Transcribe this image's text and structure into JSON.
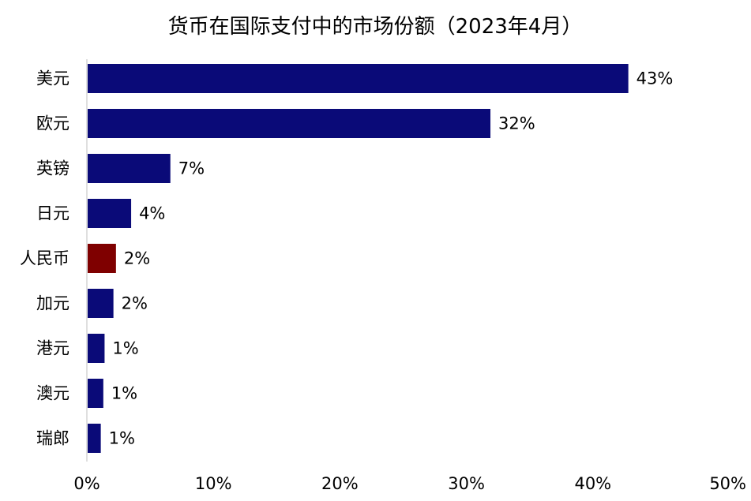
{
  "chart_data": {
    "type": "bar",
    "orientation": "horizontal",
    "title": "货币在国际支付中的市场份额（2023年4月）",
    "categories": [
      "美元",
      "欧元",
      "英镑",
      "日元",
      "人民币",
      "加元",
      "港元",
      "澳元",
      "瑞郎"
    ],
    "values": [
      42.8,
      31.9,
      6.6,
      3.5,
      2.3,
      2.1,
      1.4,
      1.3,
      1.1
    ],
    "data_labels": [
      "43%",
      "32%",
      "7%",
      "4%",
      "2%",
      "2%",
      "1%",
      "1%",
      "1%"
    ],
    "xlim": [
      0,
      50
    ],
    "x_ticks": [
      0,
      10,
      20,
      30,
      40,
      50
    ],
    "x_tick_labels": [
      "0%",
      "10%",
      "20%",
      "30%",
      "40%",
      "50%"
    ],
    "grid": false,
    "legend": "none",
    "colors": {
      "default_bar": "#0a0a78",
      "highlight_bar": "#7f0000",
      "axis": "#bfbfbf",
      "text": "#000000"
    },
    "highlight_category": "人民币"
  }
}
